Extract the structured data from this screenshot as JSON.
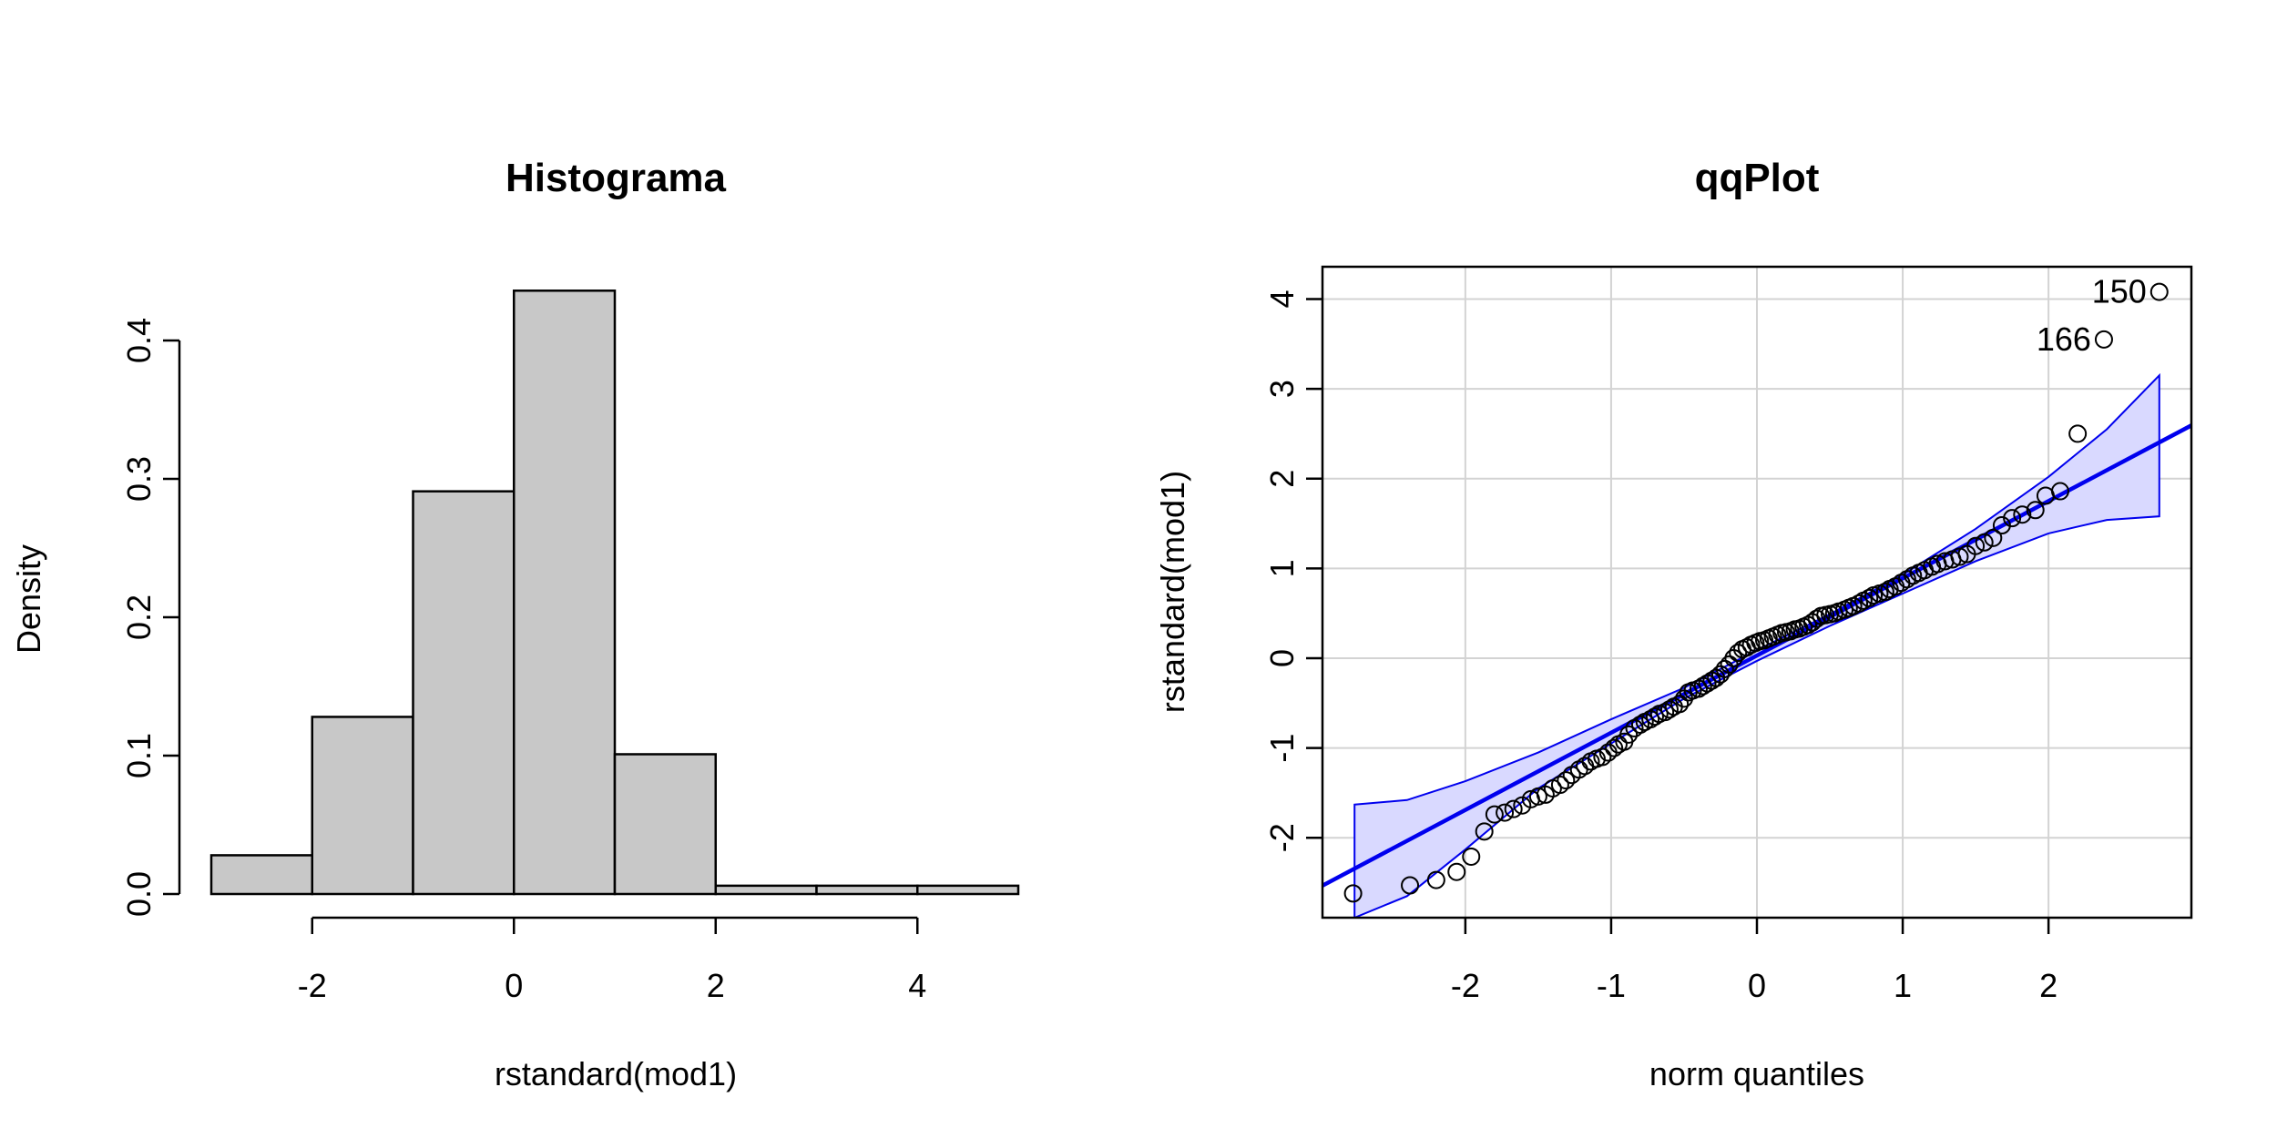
{
  "chart_data": [
    {
      "type": "bar",
      "title": "Histograma",
      "xlabel": "rstandard(mod1)",
      "ylabel": "Density",
      "bins": [
        {
          "from": -3,
          "to": -2,
          "density": 0.028
        },
        {
          "from": -2,
          "to": -1,
          "density": 0.128
        },
        {
          "from": -1,
          "to": 0,
          "density": 0.291
        },
        {
          "from": 0,
          "to": 1,
          "density": 0.436
        },
        {
          "from": 1,
          "to": 2,
          "density": 0.101
        },
        {
          "from": 2,
          "to": 3,
          "density": 0.006
        },
        {
          "from": 3,
          "to": 4,
          "density": 0.006
        },
        {
          "from": 4,
          "to": 5,
          "density": 0.006
        }
      ],
      "xlim": [
        -3,
        5
      ],
      "ylim": [
        0,
        0.4
      ],
      "x_ticks": [
        -2,
        0,
        2,
        4
      ],
      "x_tick_labels": [
        "-2",
        "0",
        "2",
        "4"
      ],
      "y_ticks": [
        0,
        0.1,
        0.2,
        0.3,
        0.4
      ],
      "y_tick_labels": [
        "0.0",
        "0.1",
        "0.2",
        "0.3",
        "0.4"
      ],
      "grid": false,
      "colors": {
        "bar_fill": "#c8c8c8",
        "bar_stroke": "#000000"
      }
    },
    {
      "type": "scatter",
      "title": "qqPlot",
      "xlabel": "norm quantiles",
      "ylabel": "rstandard(mod1)",
      "xlim": [
        -2.98,
        2.98
      ],
      "ylim": [
        -2.89,
        4.36
      ],
      "x_ticks": [
        -2,
        -1,
        0,
        1,
        2
      ],
      "x_tick_labels": [
        "-2",
        "-1",
        "0",
        "1",
        "2"
      ],
      "y_ticks": [
        -2,
        -1,
        0,
        1,
        2,
        3,
        4
      ],
      "y_tick_labels": [
        "-2",
        "-1",
        "0",
        "1",
        "2",
        "3",
        "4"
      ],
      "grid": true,
      "reference_line": {
        "intercept": 0.03,
        "slope": 0.86
      },
      "envelope": {
        "upper": [
          [
            -2.76,
            -1.63
          ],
          [
            -2.4,
            -1.58
          ],
          [
            -2.0,
            -1.37
          ],
          [
            -1.5,
            -1.05
          ],
          [
            -1.0,
            -0.68
          ],
          [
            -0.5,
            -0.33
          ],
          [
            0.0,
            0.09
          ],
          [
            0.5,
            0.49
          ],
          [
            1.0,
            0.93
          ],
          [
            1.5,
            1.44
          ],
          [
            2.0,
            2.02
          ],
          [
            2.4,
            2.55
          ],
          [
            2.76,
            3.15
          ]
        ],
        "lower": [
          [
            -2.76,
            -2.89
          ],
          [
            -2.4,
            -2.65
          ],
          [
            -2.0,
            -2.13
          ],
          [
            -1.5,
            -1.45
          ],
          [
            -1.0,
            -0.95
          ],
          [
            -0.5,
            -0.45
          ],
          [
            0.0,
            -0.03
          ],
          [
            0.5,
            0.36
          ],
          [
            1.0,
            0.72
          ],
          [
            1.5,
            1.08
          ],
          [
            2.0,
            1.39
          ],
          [
            2.4,
            1.54
          ],
          [
            2.76,
            1.58
          ]
        ]
      },
      "points": [
        [
          -2.77,
          -2.62
        ],
        [
          -2.38,
          -2.53
        ],
        [
          -2.2,
          -2.47
        ],
        [
          -2.06,
          -2.38
        ],
        [
          -1.96,
          -2.21
        ],
        [
          -1.87,
          -1.93
        ],
        [
          -1.8,
          -1.74
        ],
        [
          -1.73,
          -1.72
        ],
        [
          -1.67,
          -1.68
        ],
        [
          -1.61,
          -1.64
        ],
        [
          -1.55,
          -1.57
        ],
        [
          -1.5,
          -1.54
        ],
        [
          -1.45,
          -1.52
        ],
        [
          -1.4,
          -1.45
        ],
        [
          -1.35,
          -1.41
        ],
        [
          -1.31,
          -1.36
        ],
        [
          -1.27,
          -1.3
        ],
        [
          -1.22,
          -1.24
        ],
        [
          -1.18,
          -1.2
        ],
        [
          -1.14,
          -1.15
        ],
        [
          -1.1,
          -1.12
        ],
        [
          -1.06,
          -1.1
        ],
        [
          -1.02,
          -1.05
        ],
        [
          -0.98,
          -1.0
        ],
        [
          -0.95,
          -0.96
        ],
        [
          -0.91,
          -0.93
        ],
        [
          -0.88,
          -0.85
        ],
        [
          -0.84,
          -0.78
        ],
        [
          -0.8,
          -0.74
        ],
        [
          -0.77,
          -0.71
        ],
        [
          -0.73,
          -0.68
        ],
        [
          -0.7,
          -0.65
        ],
        [
          -0.67,
          -0.62
        ],
        [
          -0.63,
          -0.6
        ],
        [
          -0.6,
          -0.57
        ],
        [
          -0.57,
          -0.54
        ],
        [
          -0.53,
          -0.51
        ],
        [
          -0.5,
          -0.45
        ],
        [
          -0.47,
          -0.38
        ],
        [
          -0.44,
          -0.36
        ],
        [
          -0.4,
          -0.34
        ],
        [
          -0.37,
          -0.31
        ],
        [
          -0.34,
          -0.28
        ],
        [
          -0.31,
          -0.25
        ],
        [
          -0.28,
          -0.22
        ],
        [
          -0.25,
          -0.18
        ],
        [
          -0.22,
          -0.12
        ],
        [
          -0.19,
          -0.07
        ],
        [
          -0.16,
          0.0
        ],
        [
          -0.13,
          0.06
        ],
        [
          -0.1,
          0.1
        ],
        [
          -0.07,
          0.12
        ],
        [
          -0.04,
          0.15
        ],
        [
          -0.01,
          0.17
        ],
        [
          0.02,
          0.19
        ],
        [
          0.05,
          0.2
        ],
        [
          0.08,
          0.22
        ],
        [
          0.11,
          0.24
        ],
        [
          0.14,
          0.26
        ],
        [
          0.17,
          0.28
        ],
        [
          0.2,
          0.29
        ],
        [
          0.23,
          0.3
        ],
        [
          0.26,
          0.32
        ],
        [
          0.29,
          0.33
        ],
        [
          0.32,
          0.35
        ],
        [
          0.35,
          0.37
        ],
        [
          0.38,
          0.4
        ],
        [
          0.41,
          0.44
        ],
        [
          0.44,
          0.47
        ],
        [
          0.47,
          0.48
        ],
        [
          0.5,
          0.49
        ],
        [
          0.53,
          0.5
        ],
        [
          0.56,
          0.52
        ],
        [
          0.6,
          0.54
        ],
        [
          0.63,
          0.56
        ],
        [
          0.66,
          0.58
        ],
        [
          0.7,
          0.61
        ],
        [
          0.73,
          0.64
        ],
        [
          0.77,
          0.67
        ],
        [
          0.8,
          0.7
        ],
        [
          0.84,
          0.72
        ],
        [
          0.88,
          0.74
        ],
        [
          0.91,
          0.77
        ],
        [
          0.95,
          0.8
        ],
        [
          0.99,
          0.84
        ],
        [
          1.03,
          0.88
        ],
        [
          1.07,
          0.92
        ],
        [
          1.11,
          0.95
        ],
        [
          1.15,
          0.98
        ],
        [
          1.2,
          1.02
        ],
        [
          1.24,
          1.05
        ],
        [
          1.29,
          1.08
        ],
        [
          1.34,
          1.1
        ],
        [
          1.39,
          1.13
        ],
        [
          1.44,
          1.16
        ],
        [
          1.5,
          1.25
        ],
        [
          1.56,
          1.29
        ],
        [
          1.62,
          1.34
        ],
        [
          1.68,
          1.48
        ],
        [
          1.75,
          1.56
        ],
        [
          1.82,
          1.6
        ],
        [
          1.91,
          1.65
        ],
        [
          1.98,
          1.81
        ],
        [
          2.08,
          1.86
        ],
        [
          2.2,
          2.5
        ],
        [
          2.38,
          3.55
        ],
        [
          2.76,
          4.08
        ]
      ],
      "labeled_points": [
        {
          "label": "150",
          "x": 2.76,
          "y": 4.08
        },
        {
          "label": "166",
          "x": 2.38,
          "y": 3.55
        }
      ],
      "colors": {
        "line": "#0000ee",
        "envelope_fill": "#d9d9ff",
        "grid": "#d3d3d3",
        "point": "#000000"
      }
    }
  ]
}
